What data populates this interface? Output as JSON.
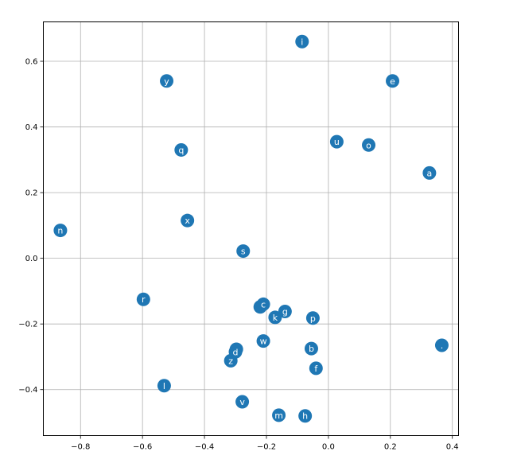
{
  "chart_data": {
    "type": "scatter",
    "title": "",
    "xlabel": "",
    "ylabel": "",
    "xlim": [
      -0.92,
      0.42
    ],
    "ylim": [
      -0.54,
      0.72
    ],
    "grid": true,
    "marker_color": "#1f77b4",
    "label_color": "#ffffff",
    "x_ticks": [
      -0.8,
      -0.6,
      -0.4,
      -0.2,
      0.0,
      0.2,
      0.4
    ],
    "x_tick_labels": [
      "−0.8",
      "−0.6",
      "−0.4",
      "−0.2",
      "0.0",
      "0.2",
      "0.4"
    ],
    "y_ticks": [
      -0.4,
      -0.2,
      0.0,
      0.2,
      0.4,
      0.6
    ],
    "y_tick_labels": [
      "−0.4",
      "−0.2",
      "0.0",
      "0.2",
      "0.4",
      "0.6"
    ],
    "points": [
      {
        "label": "i",
        "x": -0.085,
        "y": 0.66
      },
      {
        "label": "e",
        "x": 0.207,
        "y": 0.54
      },
      {
        "label": "y",
        "x": -0.522,
        "y": 0.54
      },
      {
        "label": "u",
        "x": 0.027,
        "y": 0.355
      },
      {
        "label": "o",
        "x": 0.13,
        "y": 0.345
      },
      {
        "label": "q",
        "x": -0.475,
        "y": 0.33
      },
      {
        "label": "a",
        "x": 0.326,
        "y": 0.26
      },
      {
        "label": "x",
        "x": -0.455,
        "y": 0.115
      },
      {
        "label": "n",
        "x": -0.865,
        "y": 0.085
      },
      {
        "label": "s",
        "x": -0.275,
        "y": 0.022
      },
      {
        "label": "r",
        "x": -0.597,
        "y": -0.125
      },
      {
        "label": "t",
        "x": -0.22,
        "y": -0.148
      },
      {
        "label": "c",
        "x": -0.21,
        "y": -0.14
      },
      {
        "label": "g",
        "x": -0.14,
        "y": -0.162
      },
      {
        "label": "k",
        "x": -0.172,
        "y": -0.18
      },
      {
        "label": "p",
        "x": -0.05,
        "y": -0.182
      },
      {
        "label": "w",
        "x": -0.21,
        "y": -0.252
      },
      {
        "label": "b",
        "x": -0.055,
        "y": -0.275
      },
      {
        "label": ".",
        "x": 0.366,
        "y": -0.265
      },
      {
        "label": "j",
        "x": -0.297,
        "y": -0.277
      },
      {
        "label": "d",
        "x": -0.3,
        "y": -0.285
      },
      {
        "label": "z",
        "x": -0.315,
        "y": -0.312
      },
      {
        "label": "f",
        "x": -0.04,
        "y": -0.335
      },
      {
        "label": "l",
        "x": -0.53,
        "y": -0.388
      },
      {
        "label": "v",
        "x": -0.278,
        "y": -0.437
      },
      {
        "label": "m",
        "x": -0.16,
        "y": -0.478
      },
      {
        "label": "h",
        "x": -0.075,
        "y": -0.48
      }
    ]
  }
}
